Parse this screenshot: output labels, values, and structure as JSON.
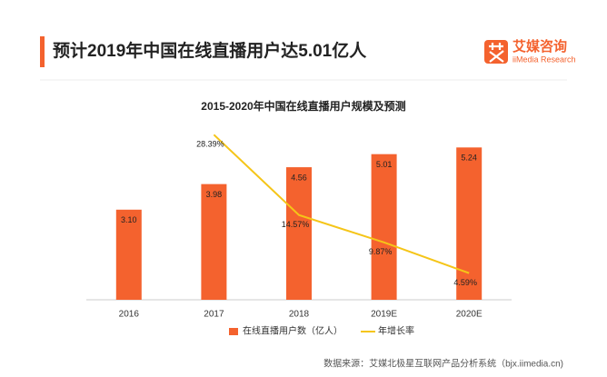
{
  "header": {
    "title": "预计2019年中国在线直播用户达5.01亿人",
    "logo": "艾媒咨询",
    "logo_sub": "iiMedia Research"
  },
  "chart_data": {
    "type": "bar",
    "title": "2015-2020年中国在线直播用户规模及预测",
    "categories": [
      "2016",
      "2017",
      "2018",
      "2019E",
      "2020E"
    ],
    "series": [
      {
        "name": "在线直播用户数（亿人）",
        "color": "#f4622e",
        "type": "bar",
        "values": [
          3.1,
          3.98,
          4.56,
          5.01,
          5.24
        ],
        "value_labels": [
          "3.10",
          "3.98",
          "4.56",
          "5.01",
          "5.24"
        ]
      },
      {
        "name": "年增长率",
        "color": "#f5c518",
        "type": "line",
        "axis": "y2",
        "values": [
          null,
          28.39,
          14.57,
          9.87,
          4.59
        ],
        "value_labels": [
          null,
          "28.39%",
          "14.57%",
          "9.87%",
          "4.59%"
        ]
      }
    ],
    "ylim": [
      0,
      6
    ],
    "y2lim": [
      0,
      30
    ]
  },
  "source": "数据来源：艾媒北极星互联网产品分析系统（bjx.iimedia.cn)"
}
